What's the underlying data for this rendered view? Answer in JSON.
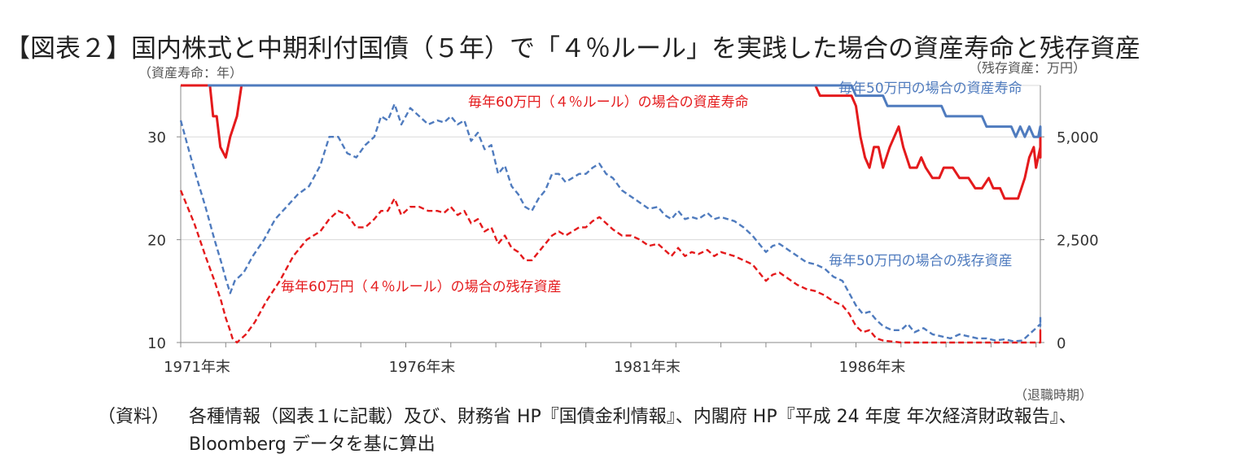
{
  "title": "【図表２】国内株式と中期利付国債（５年）で「４％ルール」を実践した場合の資産寿命と残存資産",
  "axis_units": {
    "left": "（資産寿命：年）",
    "right": "（残存資産：万円）",
    "x": "（退職時期）"
  },
  "source": {
    "label": "（資料）",
    "line1": "各種情報（図表１に記載）及び、財務省 HP『国債金利情報』、内閣府 HP『平成 24 年度 年次経済財政報告』、",
    "line2": "Bloomberg データを基に算出"
  },
  "colors": {
    "red": "#e41a1c",
    "blue": "#4f7bbe",
    "grid": "#d9d9d9",
    "axis": "#888888"
  },
  "chart_data": {
    "type": "line",
    "x_axis": {
      "min": 1971,
      "max": 1990,
      "tick_labels": [
        "1971年末",
        "1976年末",
        "1981年末",
        "1986年末"
      ],
      "tick_values": [
        1971,
        1976,
        1981,
        1986
      ]
    },
    "y_left": {
      "min": 10,
      "max": 35,
      "ticks": [
        10,
        20,
        30
      ],
      "label": "資産寿命：年"
    },
    "y_right": {
      "min": 0,
      "max": 6250,
      "ticks": [
        0,
        2500,
        5000
      ],
      "tick_labels": [
        "0",
        "2,500",
        "5,000"
      ],
      "label": "残存資産：万円"
    },
    "grid": true,
    "series": [
      {
        "name": "毎年60万円（４％ルール）の場合の資産寿命",
        "axis": "left",
        "color": "#e41a1c",
        "style": "solid",
        "points": [
          [
            1971.0,
            35
          ],
          [
            1971.65,
            35
          ],
          [
            1971.72,
            32
          ],
          [
            1971.8,
            32
          ],
          [
            1971.88,
            29
          ],
          [
            1972.0,
            28
          ],
          [
            1972.1,
            30
          ],
          [
            1972.25,
            32
          ],
          [
            1972.35,
            35
          ],
          [
            1985.1,
            35
          ],
          [
            1985.2,
            34
          ],
          [
            1985.9,
            34
          ],
          [
            1986.0,
            33
          ],
          [
            1986.1,
            30
          ],
          [
            1986.2,
            28
          ],
          [
            1986.3,
            27
          ],
          [
            1986.4,
            29
          ],
          [
            1986.5,
            29
          ],
          [
            1986.6,
            27
          ],
          [
            1986.75,
            29
          ],
          [
            1986.85,
            30
          ],
          [
            1986.95,
            31
          ],
          [
            1987.05,
            29
          ],
          [
            1987.2,
            27
          ],
          [
            1987.35,
            27
          ],
          [
            1987.45,
            28
          ],
          [
            1987.55,
            27
          ],
          [
            1987.7,
            26
          ],
          [
            1987.85,
            26
          ],
          [
            1987.95,
            27
          ],
          [
            1988.15,
            27
          ],
          [
            1988.3,
            26
          ],
          [
            1988.5,
            26
          ],
          [
            1988.65,
            25
          ],
          [
            1988.8,
            25
          ],
          [
            1988.95,
            26
          ],
          [
            1989.05,
            25
          ],
          [
            1989.2,
            25
          ],
          [
            1989.3,
            24
          ],
          [
            1989.6,
            24
          ],
          [
            1989.75,
            26
          ],
          [
            1989.85,
            28
          ],
          [
            1989.95,
            29
          ],
          [
            1990.0,
            27
          ],
          [
            1990.1,
            29
          ],
          [
            1990.2,
            28
          ],
          [
            1990.3,
            30
          ],
          [
            1991.0,
            30
          ]
        ]
      },
      {
        "name": "毎年50万円の場合の資産寿命",
        "axis": "left",
        "color": "#4f7bbe",
        "style": "solid",
        "points": [
          [
            1971.6,
            35
          ],
          [
            1972.4,
            35
          ],
          [
            1985.9,
            35
          ],
          [
            1986.0,
            34
          ],
          [
            1986.6,
            34
          ],
          [
            1986.7,
            33
          ],
          [
            1987.9,
            33
          ],
          [
            1988.0,
            32
          ],
          [
            1988.8,
            32
          ],
          [
            1988.9,
            31
          ],
          [
            1989.45,
            31
          ],
          [
            1989.55,
            30
          ],
          [
            1989.65,
            31
          ],
          [
            1989.75,
            30
          ],
          [
            1989.85,
            31
          ],
          [
            1989.95,
            30
          ],
          [
            1990.05,
            30
          ],
          [
            1990.15,
            31
          ],
          [
            1990.25,
            30
          ],
          [
            1990.35,
            30
          ],
          [
            1991.0,
            30
          ]
        ]
      },
      {
        "name": "毎年60万円（４％ルール）の場合の残存資産",
        "axis": "right",
        "color": "#e41a1c",
        "style": "dashed",
        "points": [
          [
            1971.0,
            3700
          ],
          [
            1971.3,
            2900
          ],
          [
            1971.55,
            2100
          ],
          [
            1971.75,
            1500
          ],
          [
            1971.9,
            1000
          ],
          [
            1972.0,
            600
          ],
          [
            1972.08,
            350
          ],
          [
            1972.15,
            100
          ],
          [
            1972.25,
            0
          ],
          [
            1972.45,
            200
          ],
          [
            1972.65,
            500
          ],
          [
            1972.9,
            1000
          ],
          [
            1973.2,
            1500
          ],
          [
            1973.5,
            2100
          ],
          [
            1973.8,
            2500
          ],
          [
            1974.1,
            2700
          ],
          [
            1974.3,
            3000
          ],
          [
            1974.5,
            3200
          ],
          [
            1974.7,
            3100
          ],
          [
            1974.9,
            2800
          ],
          [
            1975.1,
            2800
          ],
          [
            1975.3,
            3000
          ],
          [
            1975.45,
            3200
          ],
          [
            1975.6,
            3200
          ],
          [
            1975.75,
            3500
          ],
          [
            1975.9,
            3100
          ],
          [
            1976.1,
            3300
          ],
          [
            1976.3,
            3300
          ],
          [
            1976.5,
            3200
          ],
          [
            1976.7,
            3200
          ],
          [
            1976.85,
            3150
          ],
          [
            1977.0,
            3300
          ],
          [
            1977.15,
            3100
          ],
          [
            1977.3,
            3200
          ],
          [
            1977.45,
            2900
          ],
          [
            1977.6,
            3000
          ],
          [
            1977.75,
            2700
          ],
          [
            1977.9,
            2800
          ],
          [
            1978.05,
            2400
          ],
          [
            1978.2,
            2600
          ],
          [
            1978.35,
            2300
          ],
          [
            1978.5,
            2200
          ],
          [
            1978.65,
            2000
          ],
          [
            1978.8,
            2000
          ],
          [
            1978.95,
            2200
          ],
          [
            1979.1,
            2400
          ],
          [
            1979.25,
            2600
          ],
          [
            1979.4,
            2700
          ],
          [
            1979.55,
            2600
          ],
          [
            1979.7,
            2700
          ],
          [
            1979.85,
            2800
          ],
          [
            1980.0,
            2800
          ],
          [
            1980.15,
            2950
          ],
          [
            1980.3,
            3050
          ],
          [
            1980.45,
            2900
          ],
          [
            1980.6,
            2750
          ],
          [
            1980.8,
            2600
          ],
          [
            1981.0,
            2600
          ],
          [
            1981.2,
            2500
          ],
          [
            1981.4,
            2350
          ],
          [
            1981.6,
            2400
          ],
          [
            1981.75,
            2250
          ],
          [
            1981.9,
            2100
          ],
          [
            1982.05,
            2300
          ],
          [
            1982.2,
            2100
          ],
          [
            1982.35,
            2200
          ],
          [
            1982.5,
            2150
          ],
          [
            1982.7,
            2250
          ],
          [
            1982.85,
            2100
          ],
          [
            1983.0,
            2200
          ],
          [
            1983.15,
            2150
          ],
          [
            1983.3,
            2100
          ],
          [
            1983.5,
            2000
          ],
          [
            1983.7,
            1900
          ],
          [
            1983.85,
            1700
          ],
          [
            1984.0,
            1500
          ],
          [
            1984.15,
            1650
          ],
          [
            1984.3,
            1700
          ],
          [
            1984.5,
            1550
          ],
          [
            1984.7,
            1400
          ],
          [
            1984.9,
            1300
          ],
          [
            1985.1,
            1250
          ],
          [
            1985.3,
            1150
          ],
          [
            1985.5,
            1000
          ],
          [
            1985.7,
            900
          ],
          [
            1985.85,
            700
          ],
          [
            1986.0,
            400
          ],
          [
            1986.15,
            250
          ],
          [
            1986.3,
            300
          ],
          [
            1986.45,
            100
          ],
          [
            1986.6,
            50
          ],
          [
            1987.0,
            0
          ],
          [
            1989.8,
            0
          ],
          [
            1990.1,
            0
          ],
          [
            1990.2,
            50
          ],
          [
            1990.35,
            300
          ],
          [
            1990.45,
            100
          ],
          [
            1990.55,
            150
          ],
          [
            1990.6,
            150
          ]
        ]
      },
      {
        "name": "毎年50万円の場合の残存資産",
        "axis": "right",
        "color": "#4f7bbe",
        "style": "dashed",
        "points": [
          [
            1971.0,
            5400
          ],
          [
            1971.3,
            4200
          ],
          [
            1971.55,
            3300
          ],
          [
            1971.75,
            2500
          ],
          [
            1971.9,
            1950
          ],
          [
            1972.0,
            1550
          ],
          [
            1972.1,
            1200
          ],
          [
            1972.2,
            1500
          ],
          [
            1972.4,
            1700
          ],
          [
            1972.6,
            2100
          ],
          [
            1972.85,
            2500
          ],
          [
            1973.1,
            3000
          ],
          [
            1973.35,
            3300
          ],
          [
            1973.6,
            3600
          ],
          [
            1973.85,
            3800
          ],
          [
            1974.1,
            4300
          ],
          [
            1974.3,
            5000
          ],
          [
            1974.5,
            5000
          ],
          [
            1974.7,
            4600
          ],
          [
            1974.9,
            4500
          ],
          [
            1975.1,
            4800
          ],
          [
            1975.3,
            5000
          ],
          [
            1975.45,
            5500
          ],
          [
            1975.6,
            5400
          ],
          [
            1975.75,
            5800
          ],
          [
            1975.9,
            5300
          ],
          [
            1976.1,
            5700
          ],
          [
            1976.3,
            5500
          ],
          [
            1976.5,
            5300
          ],
          [
            1976.7,
            5400
          ],
          [
            1976.85,
            5350
          ],
          [
            1977.0,
            5500
          ],
          [
            1977.15,
            5300
          ],
          [
            1977.3,
            5400
          ],
          [
            1977.45,
            4900
          ],
          [
            1977.6,
            5100
          ],
          [
            1977.75,
            4700
          ],
          [
            1977.9,
            4800
          ],
          [
            1978.05,
            4100
          ],
          [
            1978.2,
            4300
          ],
          [
            1978.35,
            3800
          ],
          [
            1978.5,
            3600
          ],
          [
            1978.65,
            3300
          ],
          [
            1978.8,
            3200
          ],
          [
            1978.95,
            3500
          ],
          [
            1979.1,
            3700
          ],
          [
            1979.25,
            4100
          ],
          [
            1979.4,
            4100
          ],
          [
            1979.55,
            3900
          ],
          [
            1979.7,
            4000
          ],
          [
            1979.85,
            4100
          ],
          [
            1980.0,
            4100
          ],
          [
            1980.15,
            4250
          ],
          [
            1980.3,
            4350
          ],
          [
            1980.45,
            4100
          ],
          [
            1980.6,
            4000
          ],
          [
            1980.8,
            3700
          ],
          [
            1981.0,
            3550
          ],
          [
            1981.2,
            3400
          ],
          [
            1981.4,
            3250
          ],
          [
            1981.6,
            3300
          ],
          [
            1981.75,
            3100
          ],
          [
            1981.9,
            3000
          ],
          [
            1982.05,
            3200
          ],
          [
            1982.2,
            3000
          ],
          [
            1982.35,
            3050
          ],
          [
            1982.5,
            3000
          ],
          [
            1982.7,
            3150
          ],
          [
            1982.85,
            3000
          ],
          [
            1983.0,
            3050
          ],
          [
            1983.15,
            3000
          ],
          [
            1983.3,
            2950
          ],
          [
            1983.5,
            2800
          ],
          [
            1983.7,
            2600
          ],
          [
            1983.85,
            2400
          ],
          [
            1984.0,
            2200
          ],
          [
            1984.15,
            2350
          ],
          [
            1984.3,
            2400
          ],
          [
            1984.5,
            2250
          ],
          [
            1984.7,
            2100
          ],
          [
            1984.9,
            1950
          ],
          [
            1985.1,
            1900
          ],
          [
            1985.3,
            1800
          ],
          [
            1985.5,
            1600
          ],
          [
            1985.7,
            1500
          ],
          [
            1985.85,
            1200
          ],
          [
            1986.0,
            900
          ],
          [
            1986.15,
            700
          ],
          [
            1986.3,
            750
          ],
          [
            1986.45,
            550
          ],
          [
            1986.6,
            400
          ],
          [
            1986.8,
            300
          ],
          [
            1987.0,
            300
          ],
          [
            1987.15,
            450
          ],
          [
            1987.3,
            250
          ],
          [
            1987.5,
            350
          ],
          [
            1987.7,
            200
          ],
          [
            1987.9,
            150
          ],
          [
            1988.1,
            100
          ],
          [
            1988.3,
            200
          ],
          [
            1988.5,
            150
          ],
          [
            1988.7,
            100
          ],
          [
            1988.9,
            100
          ],
          [
            1989.1,
            50
          ],
          [
            1989.3,
            80
          ],
          [
            1989.5,
            30
          ],
          [
            1989.7,
            50
          ],
          [
            1989.85,
            200
          ],
          [
            1990.0,
            350
          ],
          [
            1990.15,
            450
          ],
          [
            1990.25,
            400
          ],
          [
            1990.35,
            650
          ],
          [
            1990.45,
            550
          ],
          [
            1990.6,
            550
          ]
        ]
      }
    ],
    "annotations": [
      {
        "text": "毎年60万円（４％ルール）の場合の資産寿命",
        "color": "#e41a1c",
        "series": 0
      },
      {
        "text": "毎年50万円の場合の資産寿命",
        "color": "#4f7bbe",
        "series": 1
      },
      {
        "text": "毎年60万円（４％ルール）の場合の残存資産",
        "color": "#e41a1c",
        "series": 2
      },
      {
        "text": "毎年50万円の場合の残存資産",
        "color": "#4f7bbe",
        "series": 3
      }
    ]
  }
}
